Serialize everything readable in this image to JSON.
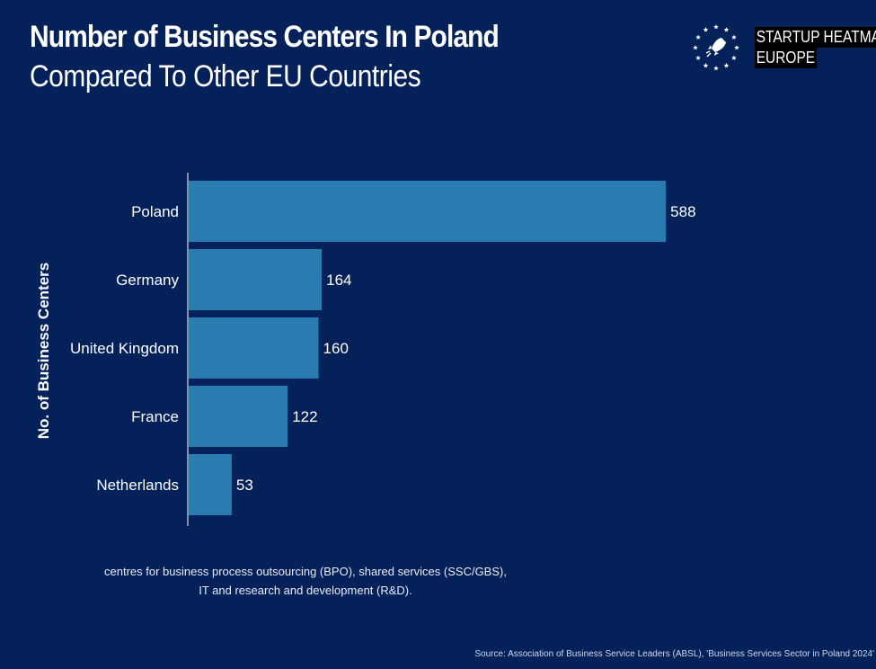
{
  "header": {
    "title": "Number of Business Centers In Poland",
    "subtitle": "Compared To Other EU Countries"
  },
  "logo": {
    "line1": "STARTUP HEATMAP",
    "line2": "EUROPE",
    "icon": "rocket-stars-icon"
  },
  "chart_data": {
    "type": "bar",
    "orientation": "horizontal",
    "categories": [
      "Poland",
      "Germany",
      "United Kingdom",
      "France",
      "Netherlands"
    ],
    "values": [
      588,
      164,
      160,
      122,
      53
    ],
    "ylabel": "No. of Business Centers",
    "xlim": [
      0,
      600
    ],
    "grid": false,
    "bar_color": "#2a7bb0"
  },
  "footnote": {
    "line1": "centres for business process outsourcing (BPO), shared services (SSC/GBS),",
    "line2": "IT and research and development (R&D)."
  },
  "source": "Source: Association of Business Service Leaders (ABSL), 'Business Services Sector in Poland 2024'",
  "colors": {
    "background": "#05215a",
    "bar": "#2a7bb0",
    "text": "#ffffff"
  }
}
